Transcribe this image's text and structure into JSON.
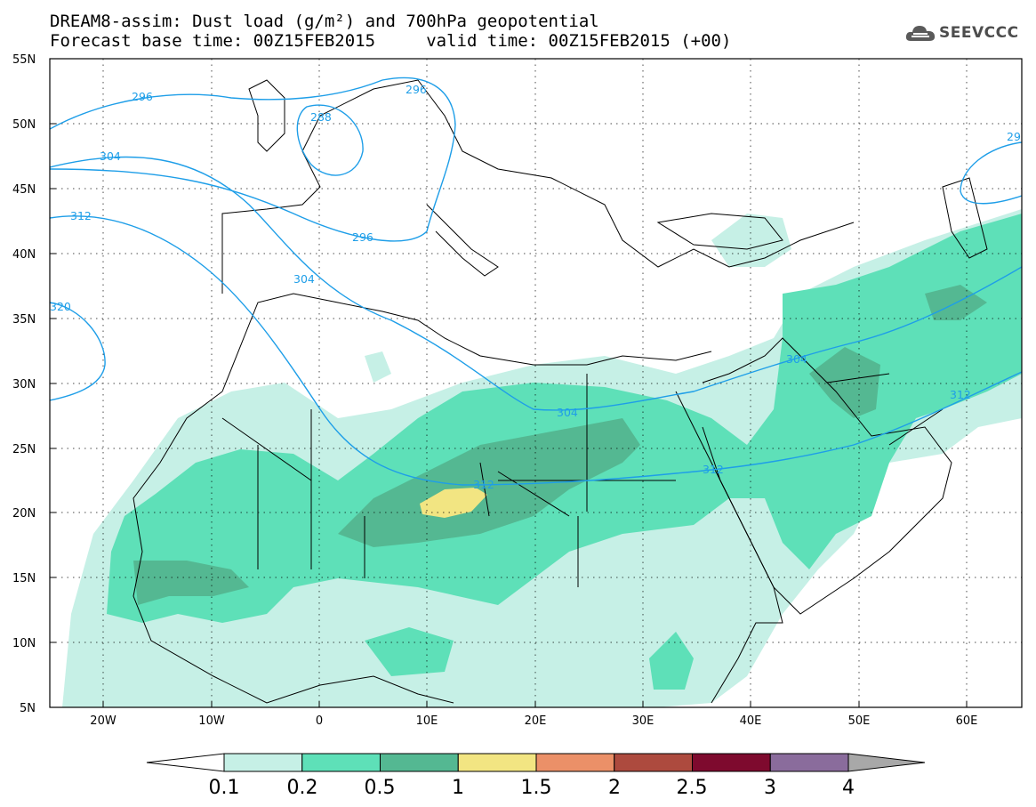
{
  "title": {
    "line1": "DREAM8-assim: Dust load (g/m²) and 700hPa geopotential",
    "line2": "Forecast base time: 00Z15FEB2015     valid time: 00Z15FEB2015 (+00)"
  },
  "logo": {
    "text": "SEEVCCC",
    "icon": "cloud-icon"
  },
  "chart_data": {
    "type": "heatmap",
    "ylim": [
      "5N",
      "55N"
    ],
    "xlim": [
      "25W",
      "65E"
    ],
    "y_ticks": [
      "55N",
      "50N",
      "45N",
      "40N",
      "35N",
      "30N",
      "25N",
      "20N",
      "15N",
      "10N",
      "5N"
    ],
    "x_ticks": [
      "20W",
      "10W",
      "0",
      "10E",
      "20E",
      "30E",
      "40E",
      "50E",
      "60E"
    ],
    "colorbar": {
      "ticks": [
        "0.1",
        "0.2",
        "0.5",
        "1",
        "1.5",
        "2",
        "2.5",
        "3",
        "4"
      ],
      "colors": [
        "#c6f0e6",
        "#5ee0b8",
        "#54b892",
        "#f2e582",
        "#eb9068",
        "#ad4a3e",
        "#7e0a2e",
        "#8a6c9c",
        "#a8a8a8"
      ]
    },
    "contour_labels": [
      "296",
      "288",
      "296",
      "304",
      "296",
      "312",
      "304",
      "320",
      "304",
      "312",
      "304",
      "312",
      "312",
      "29"
    ],
    "contour_color": "#1e9ee8",
    "grid": true
  }
}
